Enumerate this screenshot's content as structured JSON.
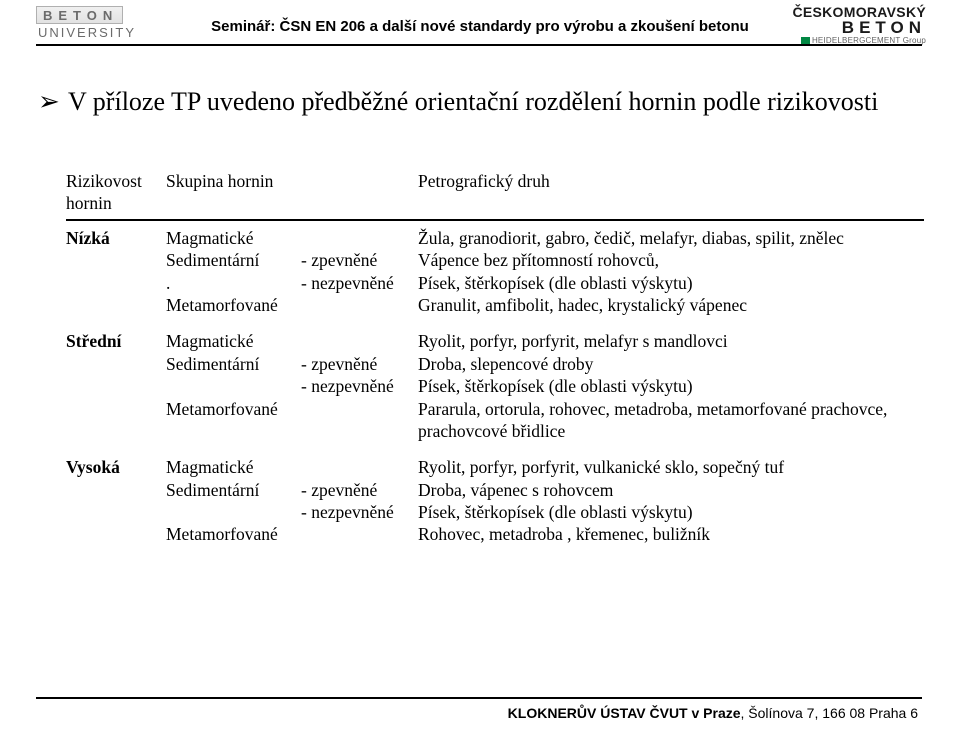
{
  "header": {
    "logo_left_top": "BETON",
    "logo_left_bottom": "UNIVERSITY",
    "seminar_title": "Seminář: ČSN EN 206 a další nové standardy pro výrobu a zkoušení betonu",
    "logo_right_top": "ČESKOMORAVSKÝ",
    "logo_right_mid": "BETON",
    "logo_right_bot": "HEIDELBERGCEMENT Group"
  },
  "bullet": "V příloze TP uvedeno předběžné orientační rozdělení hornin podle rizikovosti",
  "tbl": {
    "h1a": "Rizikovost",
    "h1b": "hornin",
    "h2": "Skupina hornin",
    "h3": "Petrografický druh",
    "groups": [
      {
        "risk": "Nízká",
        "rows": [
          {
            "c2": "Magmatické",
            "c3": "",
            "c4": "Žula, granodiorit, gabro, čedič, melafyr, diabas, spilit, znělec"
          },
          {
            "c2": "Sedimentární",
            "c3": "- zpevněné",
            "c4": "Vápence bez přítomností rohovců,"
          },
          {
            "c2": ".",
            "c3": "- nezpevněné",
            "c4": "Písek, štěrkopísek (dle oblasti výskytu)"
          },
          {
            "c2": "Metamorfované",
            "c3": "",
            "c4": "Granulit, amfibolit, hadec, krystalický vápenec"
          }
        ]
      },
      {
        "risk": "Střední",
        "rows": [
          {
            "c2": "Magmatické",
            "c3": "",
            "c4": "Ryolit, porfyr, porfyrit, melafyr s mandlovci"
          },
          {
            "c2": "Sedimentární",
            "c3": "- zpevněné",
            "c4": "Droba, slepencové droby"
          },
          {
            "c2": "",
            "c3": "- nezpevněné",
            "c4": "Písek, štěrkopísek (dle oblasti výskytu)"
          },
          {
            "c2": "Metamorfované",
            "c3": "",
            "c4": "Pararula, ortorula, rohovec, metadroba, metamorfované prachovce, prachovcové břidlice"
          }
        ]
      },
      {
        "risk": "Vysoká",
        "rows": [
          {
            "c2": "Magmatické",
            "c3": "",
            "c4": "Ryolit, porfyr, porfyrit, vulkanické sklo, sopečný tuf"
          },
          {
            "c2": "Sedimentární",
            "c3": "- zpevněné",
            "c4": "Droba, vápenec s rohovcem"
          },
          {
            "c2": "",
            "c3": "- nezpevněné",
            "c4": "Písek, štěrkopísek (dle oblasti výskytu)"
          },
          {
            "c2": "Metamorfované",
            "c3": "",
            "c4": "Rohovec, metadroba , křemenec, buližník"
          }
        ]
      }
    ]
  },
  "footer": {
    "bold": "KLOKNERŮV ÚSTAV ČVUT v Praze",
    "rest": ", Šolínova 7, 166 08 Praha 6"
  }
}
